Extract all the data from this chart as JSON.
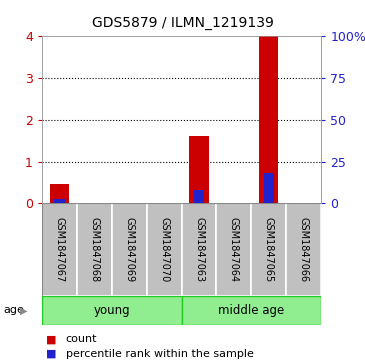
{
  "title": "GDS5879 / ILMN_1219139",
  "samples": [
    "GSM1847067",
    "GSM1847068",
    "GSM1847069",
    "GSM1847070",
    "GSM1847063",
    "GSM1847064",
    "GSM1847065",
    "GSM1847066"
  ],
  "count_values": [
    0.45,
    0,
    0,
    0,
    1.6,
    0,
    4.0,
    0
  ],
  "percentile_values": [
    2.5,
    0,
    0,
    0,
    8.0,
    0,
    18.0,
    0
  ],
  "ylim_left": [
    0,
    4
  ],
  "ylim_right": [
    0,
    100
  ],
  "yticks_left": [
    0,
    1,
    2,
    3,
    4
  ],
  "yticks_right": [
    0,
    25,
    50,
    75,
    100
  ],
  "ytick_labels_right": [
    "0",
    "25",
    "50",
    "75",
    "100%"
  ],
  "groups": [
    {
      "label": "young",
      "start": 0,
      "end": 3
    },
    {
      "label": "middle age",
      "start": 4,
      "end": 7
    }
  ],
  "group_color": "#90EE90",
  "group_border_color": "#22CC22",
  "age_label": "age",
  "bar_color_red": "#CC0000",
  "bar_color_blue": "#2222CC",
  "bar_width": 0.55,
  "blue_bar_width": 0.3,
  "sample_bg_color": "#C0C0C0",
  "sample_divider_color": "#FFFFFF",
  "plot_bg_color": "#FFFFFF",
  "grid_color": "#000000",
  "left_tick_color": "#CC0000",
  "right_tick_color": "#2222CC",
  "legend_count": "count",
  "legend_percentile": "percentile rank within the sample",
  "title_fontsize": 10,
  "sample_fontsize": 7,
  "group_fontsize": 8.5,
  "legend_fontsize": 8,
  "age_fontsize": 8
}
